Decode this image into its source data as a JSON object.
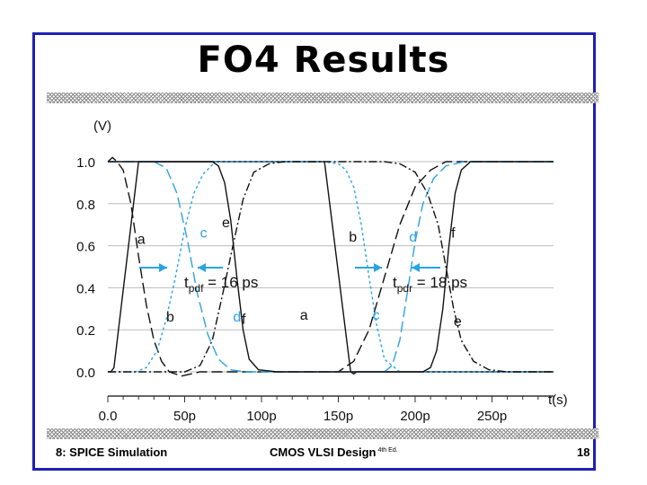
{
  "slide": {
    "title": "FO4 Results",
    "footer_left": "8: SPICE Simulation",
    "footer_center": "CMOS VLSI Design",
    "footer_center_sup": "4th Ed.",
    "page_number": "18"
  },
  "colors": {
    "frame": "#1f1fb4",
    "black_curve": "#111111",
    "blue_curve": "#2aa3e6",
    "axis": "#333333",
    "grid": "#bdbdbd"
  },
  "chart_data": {
    "type": "line",
    "title": "",
    "xlabel": "t(s)",
    "ylabel": "(V)",
    "xlim": [
      0,
      290
    ],
    "ylim": [
      -0.1,
      1.1
    ],
    "x_ticks": [
      0,
      50,
      100,
      150,
      200,
      250
    ],
    "x_tick_labels": [
      "0.0",
      "50p",
      "100p",
      "150p",
      "200p",
      "250p"
    ],
    "y_ticks": [
      0.0,
      0.2,
      0.4,
      0.6,
      0.8,
      1.0
    ],
    "y_tick_labels": [
      "0.0",
      "0.2",
      "0.4",
      "0.6",
      "0.8",
      "1.0"
    ],
    "grid": "horizontal",
    "series": [
      {
        "name": "a",
        "color": "black",
        "dash": "solid",
        "x": [
          0,
          2,
          4,
          20,
          21,
          140,
          141,
          158,
          160,
          162,
          290
        ],
        "y": [
          0.0,
          0.0,
          0.02,
          1.0,
          1.0,
          1.0,
          1.0,
          0.0,
          -0.01,
          0.0,
          0.0
        ]
      },
      {
        "name": "b",
        "color": "black",
        "dash": "longdash",
        "x": [
          0,
          3,
          6,
          10,
          15,
          20,
          25,
          30,
          35,
          40,
          48,
          60,
          150,
          160,
          170,
          180,
          190,
          200,
          210,
          220,
          235,
          250,
          290
        ],
        "y": [
          1.0,
          1.02,
          1.0,
          0.96,
          0.8,
          0.55,
          0.32,
          0.15,
          0.05,
          0.0,
          -0.02,
          0.0,
          0.0,
          0.05,
          0.2,
          0.45,
          0.7,
          0.88,
          0.96,
          1.0,
          1.0,
          1.0,
          1.0
        ]
      },
      {
        "name": "c",
        "color": "blue",
        "dash": "shortdash",
        "x": [
          0,
          18,
          25,
          32,
          38,
          44,
          50,
          56,
          62,
          70,
          140,
          150,
          155,
          160,
          165,
          170,
          175,
          180,
          190,
          290
        ],
        "y": [
          0.0,
          0.0,
          0.02,
          0.1,
          0.25,
          0.45,
          0.68,
          0.85,
          0.94,
          1.0,
          1.0,
          0.99,
          0.96,
          0.88,
          0.7,
          0.45,
          0.22,
          0.06,
          0.0,
          0.0
        ]
      },
      {
        "name": "d",
        "color": "blue",
        "dash": "longdash",
        "x": [
          0,
          30,
          38,
          45,
          52,
          58,
          65,
          72,
          80,
          90,
          180,
          185,
          190,
          195,
          200,
          205,
          212,
          220,
          232,
          245,
          290
        ],
        "y": [
          1.0,
          1.0,
          0.97,
          0.85,
          0.62,
          0.38,
          0.18,
          0.06,
          0.01,
          0.0,
          0.0,
          0.03,
          0.15,
          0.38,
          0.62,
          0.8,
          0.92,
          0.98,
          1.0,
          1.0,
          1.0
        ]
      },
      {
        "name": "e",
        "color": "black",
        "dash": "dashdot",
        "x": [
          0,
          50,
          60,
          68,
          75,
          82,
          88,
          95,
          105,
          115,
          180,
          190,
          200,
          208,
          215,
          220,
          225,
          230,
          238,
          248,
          260,
          290
        ],
        "y": [
          0.0,
          0.0,
          0.03,
          0.15,
          0.38,
          0.62,
          0.82,
          0.95,
          0.99,
          1.0,
          1.0,
          0.99,
          0.95,
          0.85,
          0.7,
          0.5,
          0.3,
          0.15,
          0.05,
          0.01,
          0.0,
          0.0
        ]
      },
      {
        "name": "f",
        "color": "black",
        "dash": "solid",
        "x": [
          0,
          60,
          68,
          72,
          76,
          80,
          84,
          88,
          92,
          98,
          110,
          200,
          205,
          210,
          214,
          218,
          222,
          226,
          230,
          236,
          245,
          290
        ],
        "y": [
          1.0,
          1.0,
          1.0,
          0.98,
          0.9,
          0.72,
          0.45,
          0.2,
          0.06,
          0.01,
          0.0,
          0.0,
          0.0,
          0.02,
          0.1,
          0.3,
          0.6,
          0.85,
          0.96,
          1.0,
          1.0,
          1.0
        ]
      }
    ],
    "annotations": [
      {
        "text": "tpdf = 16 ps",
        "main": "t",
        "sub": "pdf",
        "rest": " = 16 ps"
      },
      {
        "text": "tpdr = 18 ps",
        "main": "t",
        "sub": "pdr",
        "rest": " = 18 ps"
      }
    ]
  }
}
